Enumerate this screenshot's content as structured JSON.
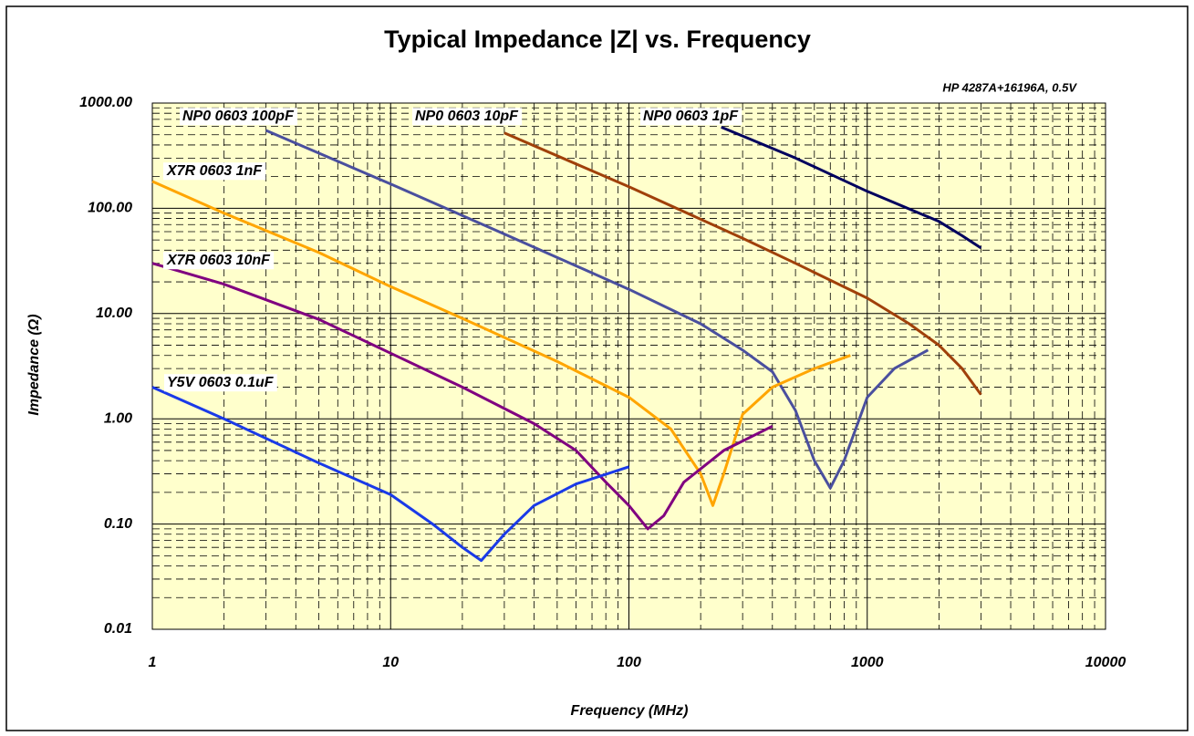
{
  "chart_data": {
    "type": "line",
    "title": "Typical Impedance |Z| vs. Frequency",
    "annotation": "HP 4287A+16196A, 0.5V",
    "x_label": "Frequency (MHz)",
    "y_label": "Impedance (Ω)",
    "xscale": "log",
    "yscale": "log",
    "grid": true,
    "xlim": [
      1,
      10000
    ],
    "xticks": [
      1,
      10,
      100,
      1000,
      10000
    ],
    "ylim": [
      0.01,
      1000
    ],
    "yticks": [
      {
        "value": 0.01,
        "label": "0.01"
      },
      {
        "value": 0.1,
        "label": "0.10"
      },
      {
        "value": 1,
        "label": "1.00"
      },
      {
        "value": 10,
        "label": "10.00"
      },
      {
        "value": 100,
        "label": "100.00"
      },
      {
        "value": 1000,
        "label": "1000.00"
      }
    ],
    "series": [
      {
        "name": "NP0 0603 100pF",
        "color": "#4a4f9e",
        "x": [
          3,
          10,
          30,
          100,
          200,
          300,
          400,
          500,
          600,
          700,
          800,
          1000,
          1300,
          1800
        ],
        "values": [
          550,
          170,
          57,
          17,
          8,
          4.5,
          2.8,
          1.2,
          0.4,
          0.22,
          0.4,
          1.6,
          3,
          4.5
        ]
      },
      {
        "name": "NP0 0603 10pF",
        "color": "#a0400a",
        "x": [
          30,
          100,
          300,
          500,
          1000,
          1500,
          2000,
          2500,
          3000
        ],
        "values": [
          520,
          160,
          52,
          30,
          14,
          8,
          5,
          3,
          1.7
        ]
      },
      {
        "name": "NP0 0603 1pF",
        "color": "#00005e",
        "x": [
          244,
          500,
          1000,
          2000,
          2500,
          3000
        ],
        "values": [
          590,
          300,
          145,
          75,
          55,
          42
        ]
      },
      {
        "name": "X7R 0603 1nF",
        "color": "#ffa500",
        "x": [
          1,
          2,
          5,
          10,
          20,
          50,
          100,
          150,
          200,
          225,
          250,
          300,
          400,
          600,
          850
        ],
        "values": [
          180,
          90,
          38,
          18,
          9,
          3.5,
          1.6,
          0.8,
          0.3,
          0.15,
          0.3,
          1.1,
          2,
          3,
          4
        ]
      },
      {
        "name": "X7R 0603 10nF",
        "color": "#800080",
        "x": [
          1,
          2,
          5,
          10,
          20,
          40,
          60,
          80,
          100,
          120,
          140,
          170,
          250,
          400
        ],
        "values": [
          30,
          19,
          8.8,
          4.2,
          2,
          0.9,
          0.5,
          0.25,
          0.15,
          0.09,
          0.12,
          0.25,
          0.5,
          0.85
        ]
      },
      {
        "name": "Y5V 0603 0.1uF",
        "color": "#1a3ae8",
        "x": [
          1,
          2,
          5,
          10,
          15,
          20,
          24,
          30,
          40,
          60,
          100
        ],
        "values": [
          2,
          1,
          0.38,
          0.19,
          0.1,
          0.06,
          0.045,
          0.08,
          0.15,
          0.24,
          0.35
        ]
      }
    ]
  }
}
